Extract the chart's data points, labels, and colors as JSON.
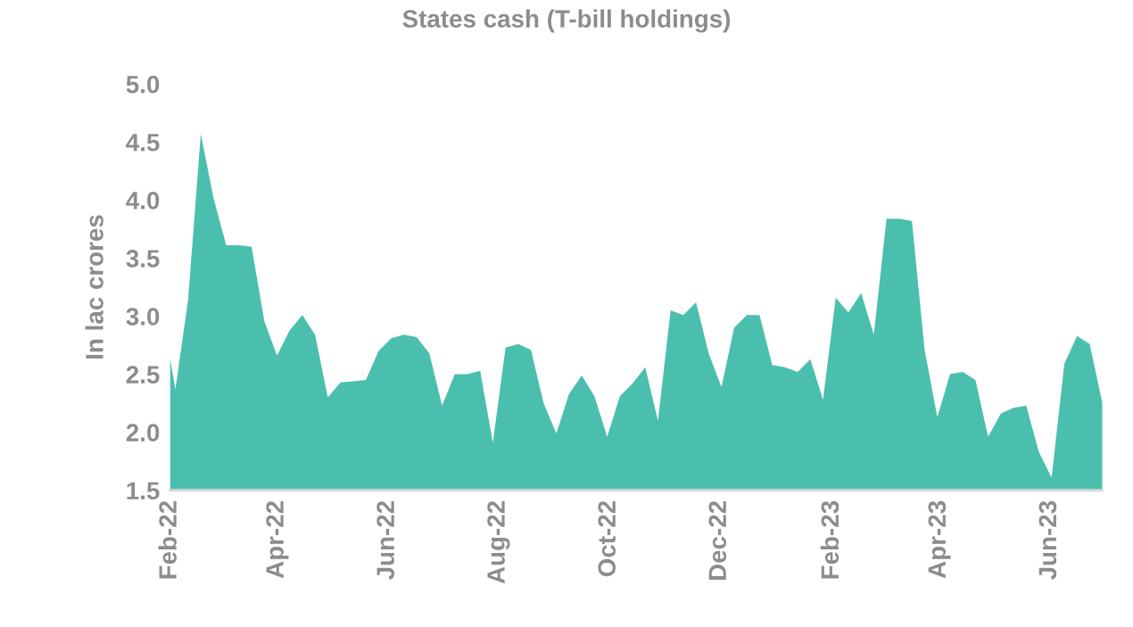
{
  "chart_data": {
    "type": "area",
    "title": "States cash (T-bill holdings)",
    "ylabel": "In lac crores",
    "x": [
      "2022-02-01",
      "2022-02-04",
      "2022-02-11",
      "2022-02-18",
      "2022-02-25",
      "2022-03-04",
      "2022-03-11",
      "2022-03-18",
      "2022-03-25",
      "2022-04-01",
      "2022-04-08",
      "2022-04-15",
      "2022-04-22",
      "2022-04-29",
      "2022-05-06",
      "2022-05-13",
      "2022-05-20",
      "2022-05-27",
      "2022-06-03",
      "2022-06-10",
      "2022-06-17",
      "2022-06-24",
      "2022-07-01",
      "2022-07-08",
      "2022-07-15",
      "2022-07-22",
      "2022-07-29",
      "2022-08-05",
      "2022-08-12",
      "2022-08-19",
      "2022-08-26",
      "2022-09-02",
      "2022-09-09",
      "2022-09-16",
      "2022-09-23",
      "2022-09-30",
      "2022-10-07",
      "2022-10-14",
      "2022-10-21",
      "2022-10-28",
      "2022-11-04",
      "2022-11-11",
      "2022-11-18",
      "2022-11-25",
      "2022-12-02",
      "2022-12-09",
      "2022-12-16",
      "2022-12-23",
      "2022-12-30",
      "2023-01-06",
      "2023-01-13",
      "2023-01-20",
      "2023-01-27",
      "2023-02-03",
      "2023-02-10",
      "2023-02-17",
      "2023-02-24",
      "2023-03-03",
      "2023-03-10",
      "2023-03-17",
      "2023-03-24",
      "2023-03-31",
      "2023-04-07",
      "2023-04-14",
      "2023-04-21",
      "2023-04-28",
      "2023-05-05",
      "2023-05-12",
      "2023-05-19",
      "2023-05-26",
      "2023-06-02",
      "2023-06-09",
      "2023-06-16",
      "2023-06-23",
      "2023-06-30"
    ],
    "series": [
      {
        "color": "#4bbfad",
        "values": [
          2.64,
          2.37,
          3.14,
          4.57,
          4.02,
          3.61,
          3.61,
          3.6,
          2.96,
          2.66,
          2.88,
          3.01,
          2.84,
          2.3,
          2.43,
          2.44,
          2.45,
          2.7,
          2.81,
          2.84,
          2.82,
          2.68,
          2.23,
          2.5,
          2.5,
          2.53,
          1.91,
          2.73,
          2.76,
          2.71,
          2.25,
          1.99,
          2.33,
          2.49,
          2.31,
          1.96,
          2.31,
          2.42,
          2.56,
          2.1,
          3.05,
          3.01,
          3.12,
          2.68,
          2.39,
          2.9,
          3.01,
          3.01,
          2.58,
          2.56,
          2.52,
          2.63,
          2.28,
          3.16,
          3.03,
          3.2,
          2.84,
          3.84,
          3.84,
          3.82,
          2.71,
          2.13,
          2.5,
          2.52,
          2.45,
          1.96,
          2.16,
          2.21,
          2.23,
          1.83,
          1.61,
          2.59,
          2.83,
          2.76,
          2.25
        ]
      }
    ],
    "xlim": [
      "2022-02-01",
      "2023-06-30"
    ],
    "xticks": [
      {
        "value": "2022-02-01",
        "label": "Feb-22"
      },
      {
        "value": "2022-04-01",
        "label": "Apr-22"
      },
      {
        "value": "2022-06-01",
        "label": "Jun-22"
      },
      {
        "value": "2022-08-01",
        "label": "Aug-22"
      },
      {
        "value": "2022-10-01",
        "label": "Oct-22"
      },
      {
        "value": "2022-12-01",
        "label": "Dec-22"
      },
      {
        "value": "2023-02-01",
        "label": "Feb-23"
      },
      {
        "value": "2023-04-01",
        "label": "Apr-23"
      },
      {
        "value": "2023-06-01",
        "label": "Jun-23"
      }
    ],
    "ylim": [
      1.5,
      5.0
    ],
    "yticks": [
      1.5,
      {
        "value": 2,
        "label": "2.0"
      },
      2.5,
      {
        "value": 3,
        "label": "3.0"
      },
      3.5,
      {
        "value": 4,
        "label": "4.0"
      },
      4.5,
      {
        "value": 5,
        "label": "5.0"
      }
    ],
    "grid": false,
    "legend": false
  }
}
